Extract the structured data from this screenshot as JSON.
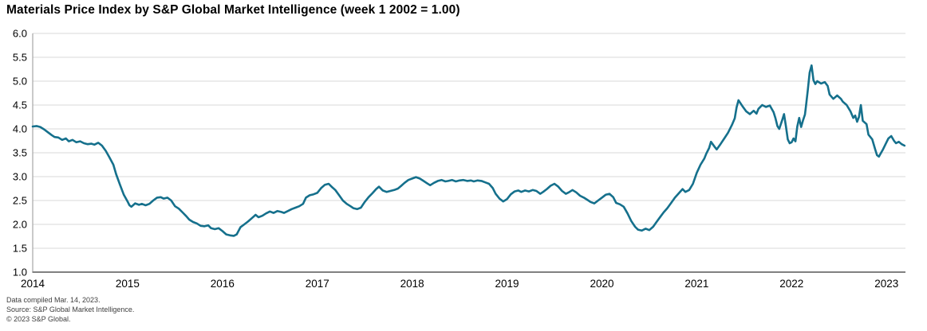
{
  "title": "Materials Price Index by S&P Global Market Intelligence (week 1 2002 = 1.00)",
  "footnotes": [
    "Data compiled Mar. 14, 2023.",
    "Source: S&P Global Market Intelligence.",
    "© 2023 S&P Global."
  ],
  "colors": {
    "line": "#15708c",
    "grid": "#d9d9d9",
    "axis_left": "#a6a6a6",
    "axis_bottom": "#808080",
    "title_text": "#000000",
    "footnote_text": "#404040"
  },
  "chart_data": {
    "type": "line",
    "title": "Materials Price Index by S&P Global Market Intelligence (week 1 2002 = 1.00)",
    "xlabel": "",
    "ylabel": "",
    "xlim": [
      2014.0,
      2023.2
    ],
    "ylim": [
      1.0,
      6.0
    ],
    "grid": "horizontal",
    "legend": "none",
    "y_ticks": [
      6.0,
      5.5,
      5.0,
      4.5,
      4.0,
      3.5,
      3.0,
      2.5,
      2.0,
      1.5,
      1.0
    ],
    "y_tick_labels": [
      "6.0",
      "5.5",
      "5.0",
      "4.5",
      "4.0",
      "3.5",
      "3.0",
      "2.5",
      "2.0",
      "1.5",
      "1.0"
    ],
    "x_ticks": [
      2014,
      2015,
      2016,
      2017,
      2018,
      2019,
      2020,
      2021,
      2022,
      2023
    ],
    "x_tick_labels": [
      "2014",
      "2015",
      "2016",
      "2017",
      "2018",
      "2019",
      "2020",
      "2021",
      "2022",
      "2023"
    ],
    "series": [
      {
        "name": "Materials Price Index (week 1 2002 = 1.00)",
        "color": "#15708c",
        "points": [
          [
            2014.0,
            4.05
          ],
          [
            2014.04,
            4.06
          ],
          [
            2014.08,
            4.04
          ],
          [
            2014.12,
            3.99
          ],
          [
            2014.16,
            3.93
          ],
          [
            2014.2,
            3.87
          ],
          [
            2014.23,
            3.83
          ],
          [
            2014.27,
            3.82
          ],
          [
            2014.31,
            3.77
          ],
          [
            2014.35,
            3.8
          ],
          [
            2014.38,
            3.74
          ],
          [
            2014.42,
            3.77
          ],
          [
            2014.46,
            3.72
          ],
          [
            2014.5,
            3.74
          ],
          [
            2014.54,
            3.7
          ],
          [
            2014.58,
            3.68
          ],
          [
            2014.62,
            3.69
          ],
          [
            2014.65,
            3.67
          ],
          [
            2014.69,
            3.71
          ],
          [
            2014.73,
            3.65
          ],
          [
            2014.77,
            3.54
          ],
          [
            2014.81,
            3.4
          ],
          [
            2014.85,
            3.25
          ],
          [
            2014.88,
            3.05
          ],
          [
            2014.92,
            2.83
          ],
          [
            2014.96,
            2.62
          ],
          [
            2015.0,
            2.48
          ],
          [
            2015.02,
            2.4
          ],
          [
            2015.04,
            2.37
          ],
          [
            2015.08,
            2.44
          ],
          [
            2015.12,
            2.41
          ],
          [
            2015.15,
            2.43
          ],
          [
            2015.19,
            2.4
          ],
          [
            2015.23,
            2.43
          ],
          [
            2015.27,
            2.5
          ],
          [
            2015.31,
            2.56
          ],
          [
            2015.35,
            2.57
          ],
          [
            2015.38,
            2.54
          ],
          [
            2015.42,
            2.56
          ],
          [
            2015.46,
            2.5
          ],
          [
            2015.5,
            2.38
          ],
          [
            2015.54,
            2.33
          ],
          [
            2015.58,
            2.25
          ],
          [
            2015.62,
            2.17
          ],
          [
            2015.65,
            2.1
          ],
          [
            2015.69,
            2.05
          ],
          [
            2015.73,
            2.02
          ],
          [
            2015.77,
            1.97
          ],
          [
            2015.81,
            1.96
          ],
          [
            2015.85,
            1.98
          ],
          [
            2015.88,
            1.92
          ],
          [
            2015.92,
            1.9
          ],
          [
            2015.96,
            1.92
          ],
          [
            2016.0,
            1.86
          ],
          [
            2016.04,
            1.79
          ],
          [
            2016.08,
            1.77
          ],
          [
            2016.12,
            1.76
          ],
          [
            2016.15,
            1.79
          ],
          [
            2016.19,
            1.94
          ],
          [
            2016.23,
            2.0
          ],
          [
            2016.27,
            2.06
          ],
          [
            2016.31,
            2.13
          ],
          [
            2016.35,
            2.2
          ],
          [
            2016.38,
            2.15
          ],
          [
            2016.42,
            2.18
          ],
          [
            2016.46,
            2.23
          ],
          [
            2016.5,
            2.27
          ],
          [
            2016.54,
            2.24
          ],
          [
            2016.58,
            2.28
          ],
          [
            2016.62,
            2.26
          ],
          [
            2016.65,
            2.24
          ],
          [
            2016.69,
            2.28
          ],
          [
            2016.73,
            2.32
          ],
          [
            2016.77,
            2.35
          ],
          [
            2016.81,
            2.38
          ],
          [
            2016.85,
            2.43
          ],
          [
            2016.88,
            2.56
          ],
          [
            2016.92,
            2.61
          ],
          [
            2016.96,
            2.63
          ],
          [
            2017.0,
            2.66
          ],
          [
            2017.04,
            2.76
          ],
          [
            2017.08,
            2.83
          ],
          [
            2017.12,
            2.85
          ],
          [
            2017.15,
            2.79
          ],
          [
            2017.19,
            2.72
          ],
          [
            2017.23,
            2.61
          ],
          [
            2017.27,
            2.5
          ],
          [
            2017.31,
            2.43
          ],
          [
            2017.35,
            2.38
          ],
          [
            2017.38,
            2.34
          ],
          [
            2017.42,
            2.32
          ],
          [
            2017.46,
            2.35
          ],
          [
            2017.5,
            2.47
          ],
          [
            2017.54,
            2.57
          ],
          [
            2017.58,
            2.65
          ],
          [
            2017.62,
            2.74
          ],
          [
            2017.65,
            2.79
          ],
          [
            2017.69,
            2.71
          ],
          [
            2017.73,
            2.68
          ],
          [
            2017.77,
            2.7
          ],
          [
            2017.81,
            2.72
          ],
          [
            2017.85,
            2.75
          ],
          [
            2017.88,
            2.8
          ],
          [
            2017.92,
            2.87
          ],
          [
            2017.96,
            2.93
          ],
          [
            2018.0,
            2.96
          ],
          [
            2018.04,
            2.99
          ],
          [
            2018.08,
            2.96
          ],
          [
            2018.12,
            2.91
          ],
          [
            2018.15,
            2.87
          ],
          [
            2018.19,
            2.82
          ],
          [
            2018.23,
            2.87
          ],
          [
            2018.27,
            2.91
          ],
          [
            2018.31,
            2.93
          ],
          [
            2018.35,
            2.9
          ],
          [
            2018.38,
            2.91
          ],
          [
            2018.42,
            2.93
          ],
          [
            2018.46,
            2.9
          ],
          [
            2018.5,
            2.92
          ],
          [
            2018.54,
            2.93
          ],
          [
            2018.58,
            2.91
          ],
          [
            2018.62,
            2.92
          ],
          [
            2018.65,
            2.9
          ],
          [
            2018.69,
            2.92
          ],
          [
            2018.73,
            2.91
          ],
          [
            2018.77,
            2.88
          ],
          [
            2018.81,
            2.85
          ],
          [
            2018.85,
            2.76
          ],
          [
            2018.88,
            2.64
          ],
          [
            2018.92,
            2.54
          ],
          [
            2018.96,
            2.48
          ],
          [
            2019.0,
            2.53
          ],
          [
            2019.04,
            2.63
          ],
          [
            2019.08,
            2.69
          ],
          [
            2019.12,
            2.71
          ],
          [
            2019.15,
            2.68
          ],
          [
            2019.19,
            2.71
          ],
          [
            2019.23,
            2.69
          ],
          [
            2019.27,
            2.72
          ],
          [
            2019.31,
            2.7
          ],
          [
            2019.35,
            2.64
          ],
          [
            2019.38,
            2.68
          ],
          [
            2019.42,
            2.74
          ],
          [
            2019.46,
            2.81
          ],
          [
            2019.5,
            2.85
          ],
          [
            2019.54,
            2.79
          ],
          [
            2019.58,
            2.7
          ],
          [
            2019.62,
            2.64
          ],
          [
            2019.65,
            2.67
          ],
          [
            2019.69,
            2.72
          ],
          [
            2019.73,
            2.67
          ],
          [
            2019.77,
            2.6
          ],
          [
            2019.81,
            2.56
          ],
          [
            2019.85,
            2.51
          ],
          [
            2019.88,
            2.47
          ],
          [
            2019.92,
            2.44
          ],
          [
            2019.96,
            2.5
          ],
          [
            2020.0,
            2.56
          ],
          [
            2020.04,
            2.62
          ],
          [
            2020.08,
            2.64
          ],
          [
            2020.12,
            2.57
          ],
          [
            2020.15,
            2.45
          ],
          [
            2020.19,
            2.42
          ],
          [
            2020.23,
            2.37
          ],
          [
            2020.27,
            2.23
          ],
          [
            2020.31,
            2.07
          ],
          [
            2020.35,
            1.95
          ],
          [
            2020.38,
            1.89
          ],
          [
            2020.42,
            1.87
          ],
          [
            2020.46,
            1.91
          ],
          [
            2020.5,
            1.88
          ],
          [
            2020.54,
            1.95
          ],
          [
            2020.58,
            2.06
          ],
          [
            2020.62,
            2.17
          ],
          [
            2020.65,
            2.25
          ],
          [
            2020.69,
            2.34
          ],
          [
            2020.73,
            2.45
          ],
          [
            2020.77,
            2.56
          ],
          [
            2020.81,
            2.65
          ],
          [
            2020.85,
            2.74
          ],
          [
            2020.88,
            2.68
          ],
          [
            2020.92,
            2.72
          ],
          [
            2020.96,
            2.85
          ],
          [
            2021.0,
            3.08
          ],
          [
            2021.04,
            3.25
          ],
          [
            2021.08,
            3.38
          ],
          [
            2021.1,
            3.48
          ],
          [
            2021.13,
            3.6
          ],
          [
            2021.15,
            3.73
          ],
          [
            2021.19,
            3.62
          ],
          [
            2021.21,
            3.57
          ],
          [
            2021.25,
            3.68
          ],
          [
            2021.29,
            3.8
          ],
          [
            2021.33,
            3.92
          ],
          [
            2021.37,
            4.08
          ],
          [
            2021.4,
            4.22
          ],
          [
            2021.42,
            4.45
          ],
          [
            2021.44,
            4.6
          ],
          [
            2021.48,
            4.48
          ],
          [
            2021.52,
            4.37
          ],
          [
            2021.56,
            4.31
          ],
          [
            2021.6,
            4.38
          ],
          [
            2021.63,
            4.32
          ],
          [
            2021.65,
            4.42
          ],
          [
            2021.69,
            4.5
          ],
          [
            2021.73,
            4.46
          ],
          [
            2021.77,
            4.49
          ],
          [
            2021.81,
            4.35
          ],
          [
            2021.83,
            4.22
          ],
          [
            2021.85,
            4.06
          ],
          [
            2021.87,
            4.0
          ],
          [
            2021.9,
            4.18
          ],
          [
            2021.92,
            4.31
          ],
          [
            2021.94,
            4.05
          ],
          [
            2021.96,
            3.78
          ],
          [
            2021.98,
            3.7
          ],
          [
            2022.0,
            3.72
          ],
          [
            2022.02,
            3.8
          ],
          [
            2022.04,
            3.74
          ],
          [
            2022.06,
            4.05
          ],
          [
            2022.08,
            4.23
          ],
          [
            2022.1,
            4.04
          ],
          [
            2022.12,
            4.18
          ],
          [
            2022.14,
            4.3
          ],
          [
            2022.15,
            4.45
          ],
          [
            2022.17,
            4.8
          ],
          [
            2022.19,
            5.18
          ],
          [
            2022.21,
            5.33
          ],
          [
            2022.23,
            5.02
          ],
          [
            2022.25,
            4.94
          ],
          [
            2022.27,
            5.0
          ],
          [
            2022.31,
            4.95
          ],
          [
            2022.35,
            4.98
          ],
          [
            2022.38,
            4.9
          ],
          [
            2022.4,
            4.72
          ],
          [
            2022.44,
            4.63
          ],
          [
            2022.48,
            4.7
          ],
          [
            2022.52,
            4.63
          ],
          [
            2022.54,
            4.57
          ],
          [
            2022.58,
            4.5
          ],
          [
            2022.62,
            4.37
          ],
          [
            2022.65,
            4.23
          ],
          [
            2022.67,
            4.28
          ],
          [
            2022.69,
            4.15
          ],
          [
            2022.71,
            4.25
          ],
          [
            2022.73,
            4.5
          ],
          [
            2022.75,
            4.17
          ],
          [
            2022.79,
            4.1
          ],
          [
            2022.81,
            3.88
          ],
          [
            2022.85,
            3.78
          ],
          [
            2022.88,
            3.58
          ],
          [
            2022.9,
            3.45
          ],
          [
            2022.92,
            3.42
          ],
          [
            2022.96,
            3.56
          ],
          [
            2023.0,
            3.72
          ],
          [
            2023.02,
            3.8
          ],
          [
            2023.05,
            3.85
          ],
          [
            2023.08,
            3.75
          ],
          [
            2023.1,
            3.7
          ],
          [
            2023.13,
            3.73
          ],
          [
            2023.16,
            3.68
          ],
          [
            2023.19,
            3.65
          ]
        ]
      }
    ]
  }
}
